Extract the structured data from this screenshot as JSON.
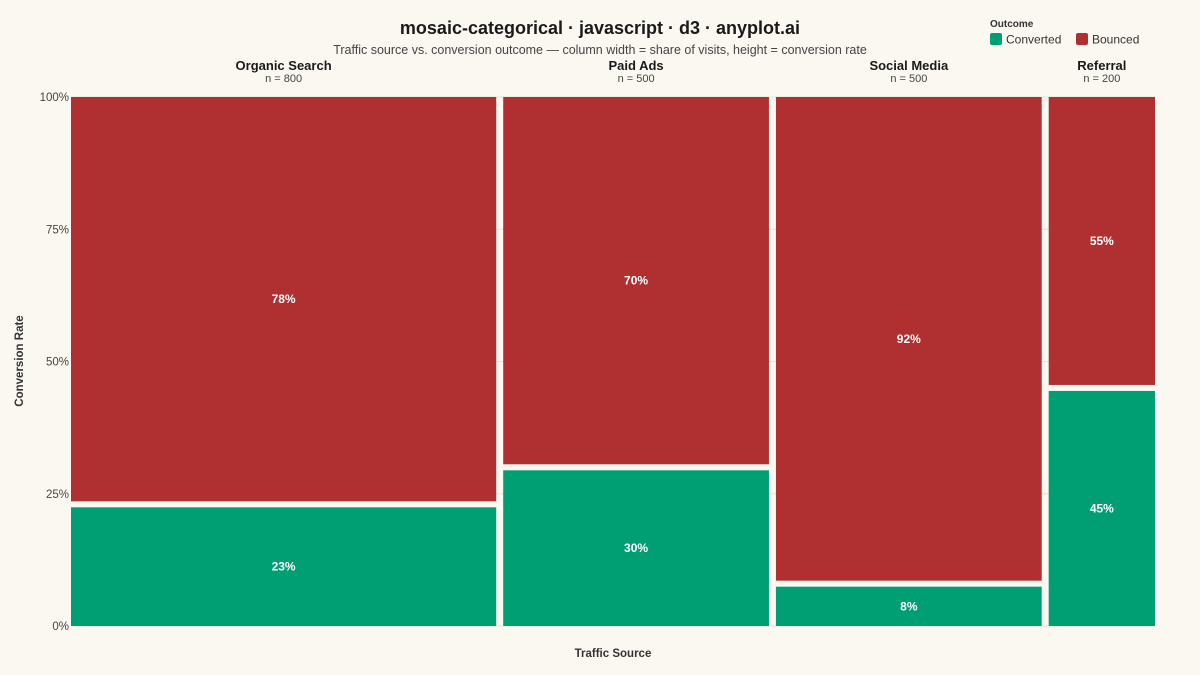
{
  "chart_data": {
    "type": "mosaic",
    "title": "mosaic-categorical · javascript · d3 · anyplot.ai",
    "subtitle": "Traffic source vs. conversion outcome — column width = share of visits, height = conversion rate",
    "xlabel": "Traffic Source",
    "ylabel": "Conversion Rate",
    "ylim": [
      0,
      100
    ],
    "yticks": [
      "0%",
      "25%",
      "50%",
      "75%",
      "100%"
    ],
    "legend": {
      "title": "Outcome",
      "placement": "top-right",
      "entries": [
        "Converted",
        "Bounced"
      ]
    },
    "series_colors": {
      "Converted": "#009E73",
      "Bounced": "#B03032"
    },
    "categories": [
      {
        "name": "Organic Search",
        "n_label": "n = 800",
        "n": 800,
        "converted": 23,
        "bounced": 78,
        "converted_label": "23%",
        "bounced_label": "78%"
      },
      {
        "name": "Paid Ads",
        "n_label": "n = 500",
        "n": 500,
        "converted": 30,
        "bounced": 70,
        "converted_label": "30%",
        "bounced_label": "70%"
      },
      {
        "name": "Social Media",
        "n_label": "n = 500",
        "n": 500,
        "converted": 8,
        "bounced": 92,
        "converted_label": "8%",
        "bounced_label": "92%"
      },
      {
        "name": "Referral",
        "n_label": "n = 200",
        "n": 200,
        "converted": 45,
        "bounced": 55,
        "converted_label": "45%",
        "bounced_label": "55%"
      }
    ]
  }
}
